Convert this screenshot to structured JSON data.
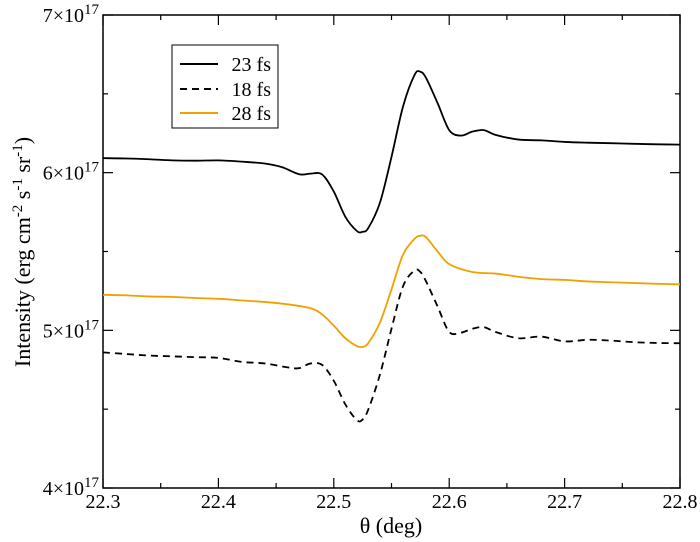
{
  "chart_data": {
    "type": "line",
    "title": "",
    "xlabel": "θ (deg)",
    "ylabel": {
      "text": "Intensity (erg cm",
      "sup1": "-2",
      "mid1": " s",
      "sup2": "-1",
      "mid2": " sr",
      "sup3": "-1",
      "close": ")"
    },
    "xlim": [
      22.3,
      22.8
    ],
    "ylim": [
      4e+17,
      7e+17
    ],
    "grid": false,
    "legend_position": "top-left",
    "x_ticks": [
      {
        "value": 22.3,
        "label": "22.3"
      },
      {
        "value": 22.4,
        "label": "22.4"
      },
      {
        "value": 22.5,
        "label": "22.5"
      },
      {
        "value": 22.6,
        "label": "22.6"
      },
      {
        "value": 22.7,
        "label": "22.7"
      },
      {
        "value": 22.8,
        "label": "22.8"
      }
    ],
    "y_ticks": [
      {
        "value": 4e+17,
        "mantissa": "4×10",
        "exp": "17"
      },
      {
        "value": 5e+17,
        "mantissa": "5×10",
        "exp": "17"
      },
      {
        "value": 6e+17,
        "mantissa": "6×10",
        "exp": "17"
      },
      {
        "value": 7e+17,
        "mantissa": "7×10",
        "exp": "17"
      }
    ],
    "series": [
      {
        "name": "23 fs",
        "color": "#000000",
        "dash": "solid",
        "x": [
          22.3,
          22.32,
          22.34,
          22.36,
          22.38,
          22.4,
          22.42,
          22.44,
          22.455,
          22.47,
          22.48,
          22.49,
          22.5,
          22.51,
          22.52,
          22.525,
          22.53,
          22.54,
          22.55,
          22.56,
          22.57,
          22.575,
          22.58,
          22.59,
          22.6,
          22.61,
          22.62,
          22.63,
          22.64,
          22.66,
          22.68,
          22.7,
          22.72,
          22.74,
          22.76,
          22.78,
          22.8
        ],
        "y": [
          6.092e+17,
          6.09e+17,
          6.085e+17,
          6.078e+17,
          6.076e+17,
          6.078e+17,
          6.07e+17,
          6.058e+17,
          6.035e+17,
          5.99e+17,
          5.994e+17,
          5.988e+17,
          5.88e+17,
          5.72e+17,
          5.63e+17,
          5.625e+17,
          5.65e+17,
          5.81e+17,
          6.1e+17,
          6.42e+17,
          6.62e+17,
          6.64e+17,
          6.6e+17,
          6.44e+17,
          6.27e+17,
          6.235e+17,
          6.26e+17,
          6.27e+17,
          6.24e+17,
          6.21e+17,
          6.205e+17,
          6.195e+17,
          6.19e+17,
          6.187e+17,
          6.183e+17,
          6.18e+17,
          6.178e+17
        ]
      },
      {
        "name": "18 fs",
        "color": "#000000",
        "dash": "dashed",
        "x": [
          22.3,
          22.32,
          22.34,
          22.36,
          22.38,
          22.4,
          22.42,
          22.44,
          22.46,
          22.47,
          22.48,
          22.49,
          22.5,
          22.51,
          22.52,
          22.525,
          22.53,
          22.54,
          22.55,
          22.56,
          22.57,
          22.575,
          22.58,
          22.59,
          22.6,
          22.61,
          22.62,
          22.63,
          22.64,
          22.66,
          22.68,
          22.7,
          22.72,
          22.74,
          22.76,
          22.78,
          22.8
        ],
        "y": [
          4.86e+17,
          4.85e+17,
          4.84e+17,
          4.835e+17,
          4.83e+17,
          4.825e+17,
          4.8e+17,
          4.79e+17,
          4.765e+17,
          4.76e+17,
          4.79e+17,
          4.78e+17,
          4.68e+17,
          4.53e+17,
          4.43e+17,
          4.435e+17,
          4.5e+17,
          4.72e+17,
          5.01e+17,
          5.28e+17,
          5.38e+17,
          5.37e+17,
          5.31e+17,
          5.15e+17,
          4.99e+17,
          4.985e+17,
          5.01e+17,
          5.02e+17,
          4.99e+17,
          4.95e+17,
          4.96e+17,
          4.93e+17,
          4.94e+17,
          4.935e+17,
          4.925e+17,
          4.92e+17,
          4.918e+17
        ]
      },
      {
        "name": "28 fs",
        "color": "#f0a000",
        "dash": "solid",
        "x": [
          22.3,
          22.32,
          22.34,
          22.36,
          22.38,
          22.4,
          22.42,
          22.44,
          22.46,
          22.48,
          22.49,
          22.5,
          22.51,
          22.52,
          22.525,
          22.53,
          22.54,
          22.55,
          22.56,
          22.57,
          22.575,
          22.58,
          22.59,
          22.6,
          22.62,
          22.64,
          22.66,
          22.68,
          22.7,
          22.72,
          22.74,
          22.76,
          22.78,
          22.8
        ],
        "y": [
          5.225e+17,
          5.222e+17,
          5.215e+17,
          5.212e+17,
          5.205e+17,
          5.2e+17,
          5.19e+17,
          5.18e+17,
          5.165e+17,
          5.14e+17,
          5.1e+17,
          5.03e+17,
          4.95e+17,
          4.9e+17,
          4.895e+17,
          4.92e+17,
          5.05e+17,
          5.26e+17,
          5.48e+17,
          5.58e+17,
          5.6e+17,
          5.59e+17,
          5.5e+17,
          5.42e+17,
          5.37e+17,
          5.36e+17,
          5.34e+17,
          5.325e+17,
          5.32e+17,
          5.31e+17,
          5.305e+17,
          5.3e+17,
          5.295e+17,
          5.292e+17
        ]
      }
    ]
  }
}
